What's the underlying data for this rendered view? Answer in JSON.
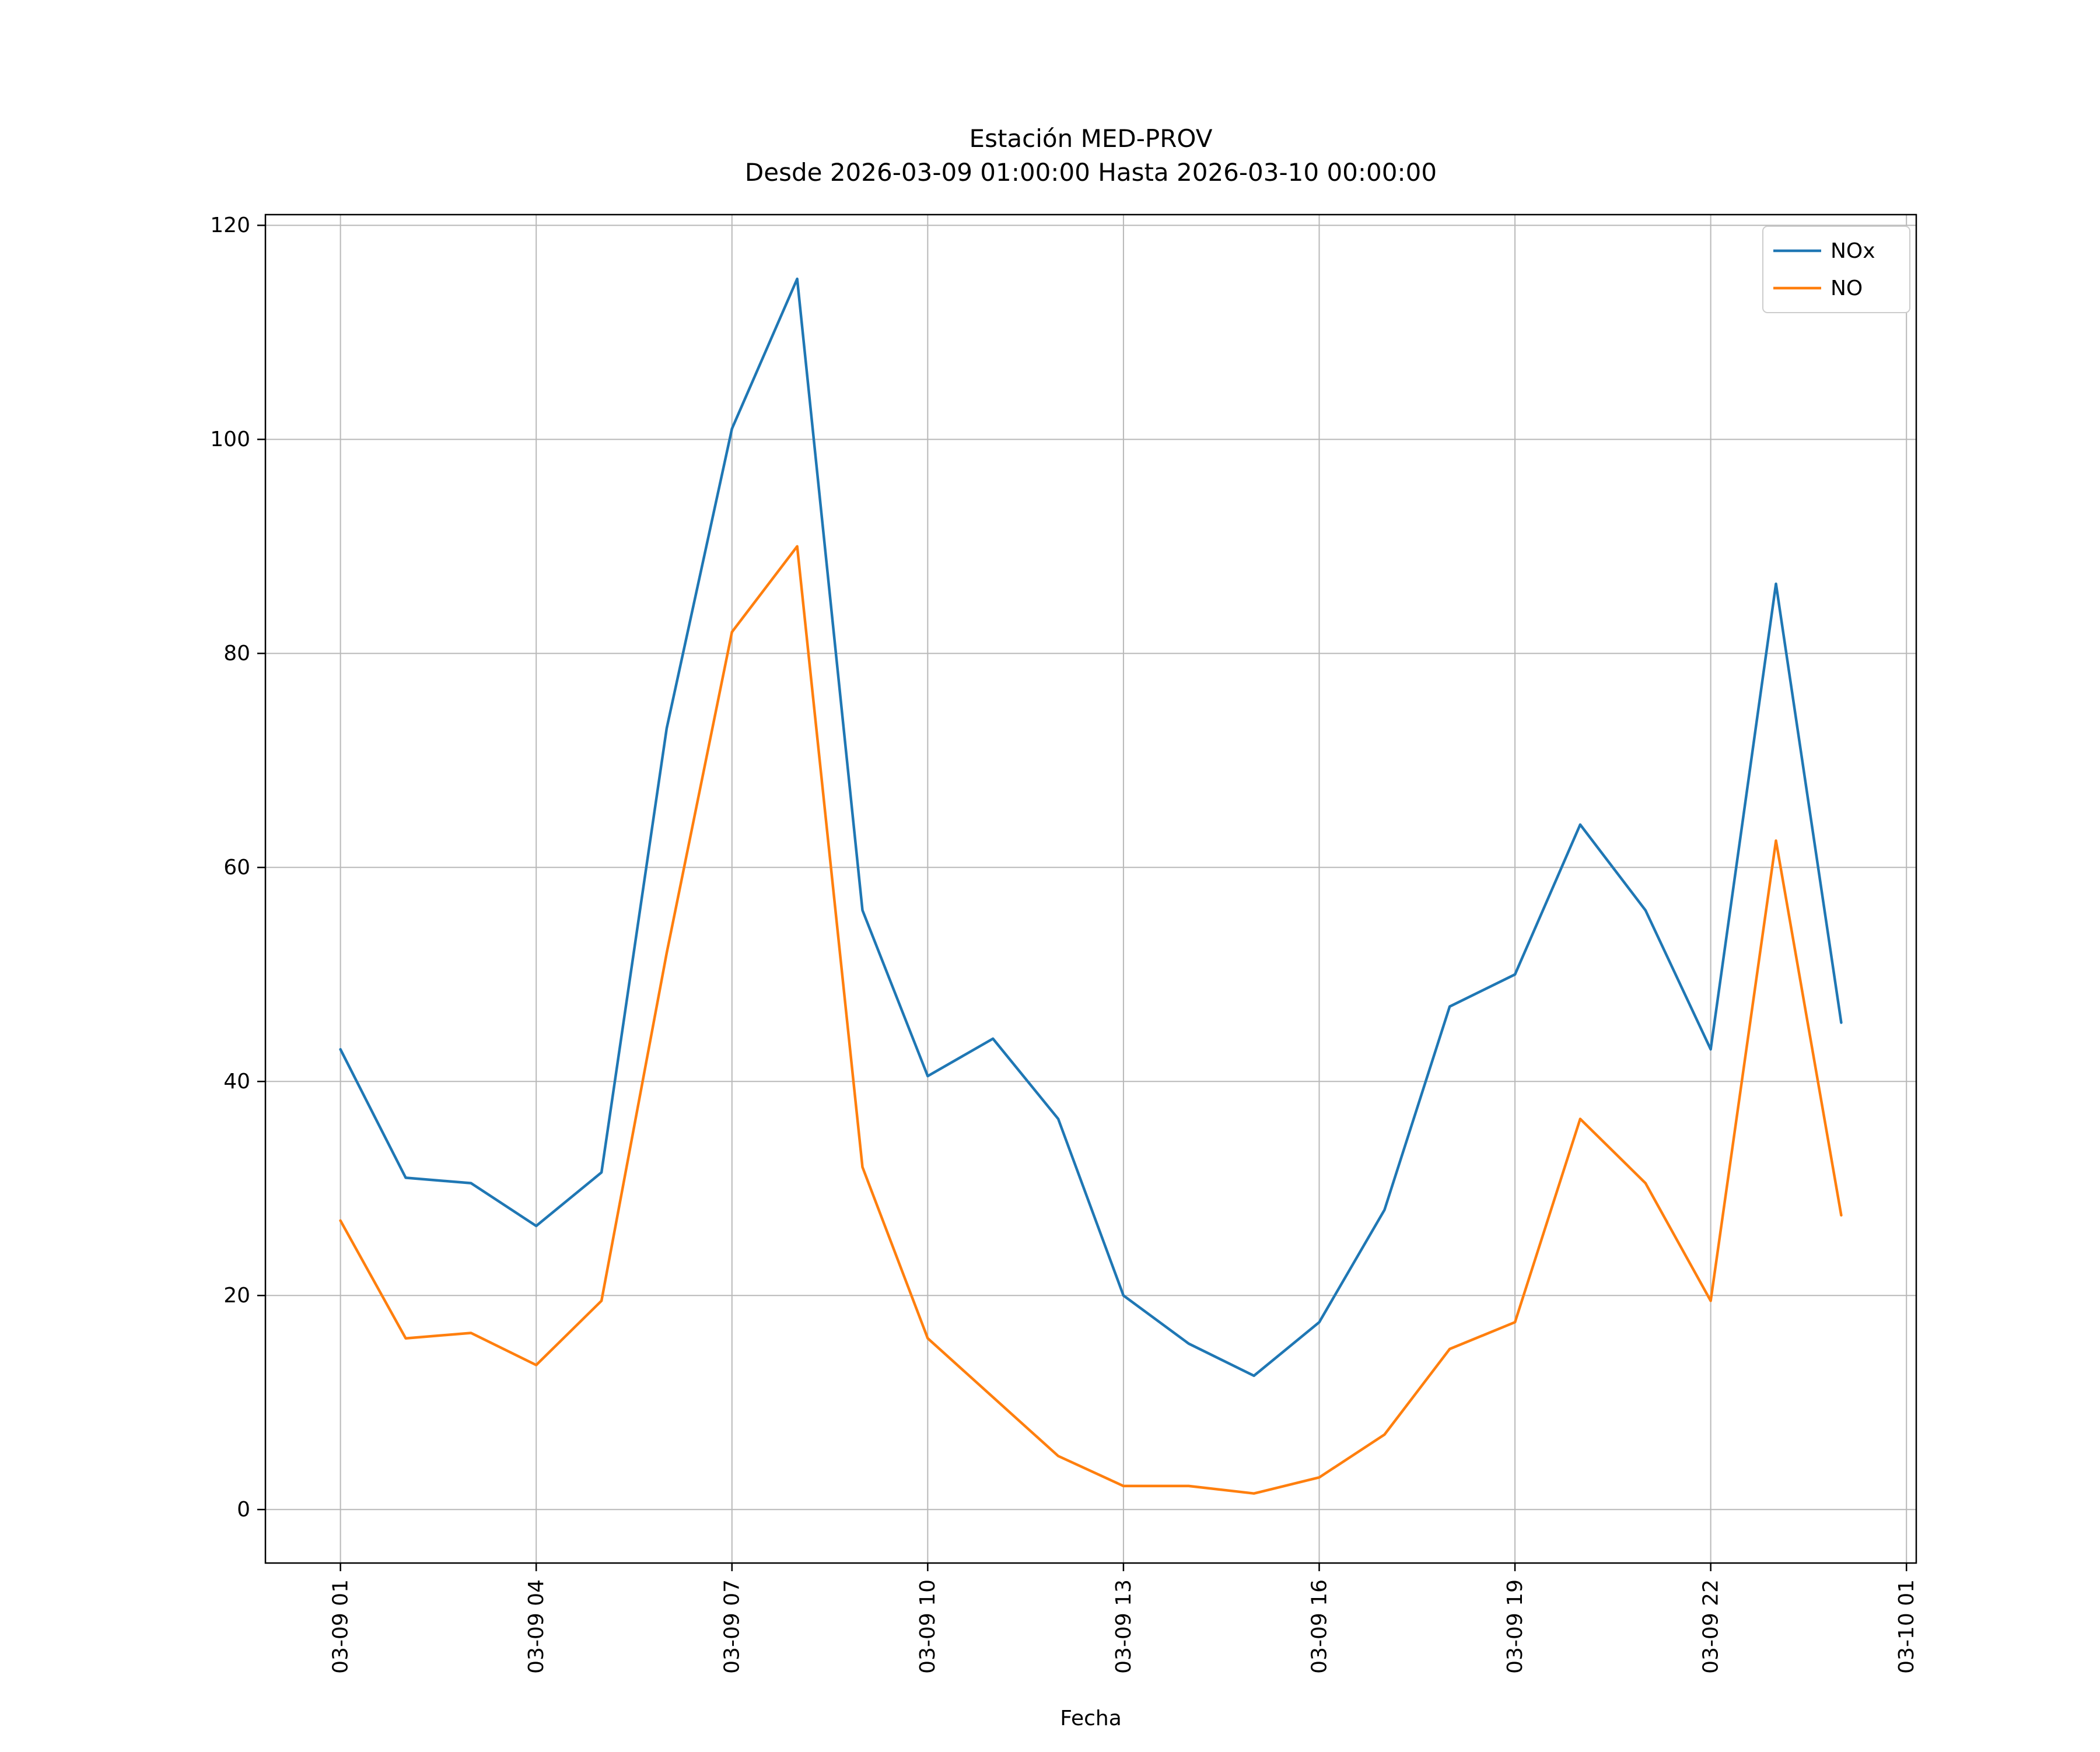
{
  "title": {
    "line1": "Estación MED-PROV",
    "line2": "Desde 2026-03-09 01:00:00 Hasta 2026-03-10 00:00:00"
  },
  "chart_data": {
    "type": "line",
    "title": "Estación MED-PROV\nDesde 2026-03-09 01:00:00 Hasta 2026-03-10 00:00:00",
    "xlabel": "Fecha",
    "ylabel": "",
    "grid": true,
    "legend_position": "upper right",
    "background_color": "#ffffff",
    "grid_color": "#b8b8b8",
    "spine_color": "#000000",
    "ylim": [
      -5,
      121
    ],
    "yticks": [
      0,
      20,
      40,
      60,
      80,
      100,
      120
    ],
    "x_hours": [
      1,
      2,
      3,
      4,
      5,
      6,
      7,
      8,
      9,
      10,
      11,
      12,
      13,
      14,
      15,
      16,
      17,
      18,
      19,
      20,
      21,
      22,
      23,
      24
    ],
    "x_hour_labels": [
      "01:00",
      "02:00",
      "03:00",
      "04:00",
      "05:00",
      "06:00",
      "07:00",
      "08:00",
      "09:00",
      "10:00",
      "11:00",
      "12:00",
      "13:00",
      "14:00",
      "15:00",
      "16:00",
      "17:00",
      "18:00",
      "19:00",
      "20:00",
      "21:00",
      "22:00",
      "23:00",
      "00:00"
    ],
    "xticks": [
      {
        "hour": 1,
        "label": "03-09 01"
      },
      {
        "hour": 4,
        "label": "03-09 04"
      },
      {
        "hour": 7,
        "label": "03-09 07"
      },
      {
        "hour": 10,
        "label": "03-09 10"
      },
      {
        "hour": 13,
        "label": "03-09 13"
      },
      {
        "hour": 16,
        "label": "03-09 16"
      },
      {
        "hour": 19,
        "label": "03-09 19"
      },
      {
        "hour": 22,
        "label": "03-09 22"
      },
      {
        "hour": 25,
        "label": "03-10 01"
      }
    ],
    "series": [
      {
        "name": "NOx",
        "color": "#1f77b4",
        "values": [
          43,
          31,
          30.5,
          26.5,
          31.5,
          73,
          101,
          115,
          56,
          40.5,
          44,
          36.5,
          20,
          15.5,
          12.5,
          17.5,
          28,
          47,
          50,
          64,
          56,
          43,
          86.5,
          45.5
        ]
      },
      {
        "name": "NO",
        "color": "#ff7f0e",
        "values": [
          27,
          16,
          16.5,
          13.5,
          19.5,
          52,
          82,
          90,
          32,
          16,
          10.5,
          5,
          2.2,
          2.2,
          1.5,
          3,
          7,
          15,
          17.5,
          36.5,
          30.5,
          19.5,
          62.5,
          27.5
        ]
      }
    ]
  }
}
